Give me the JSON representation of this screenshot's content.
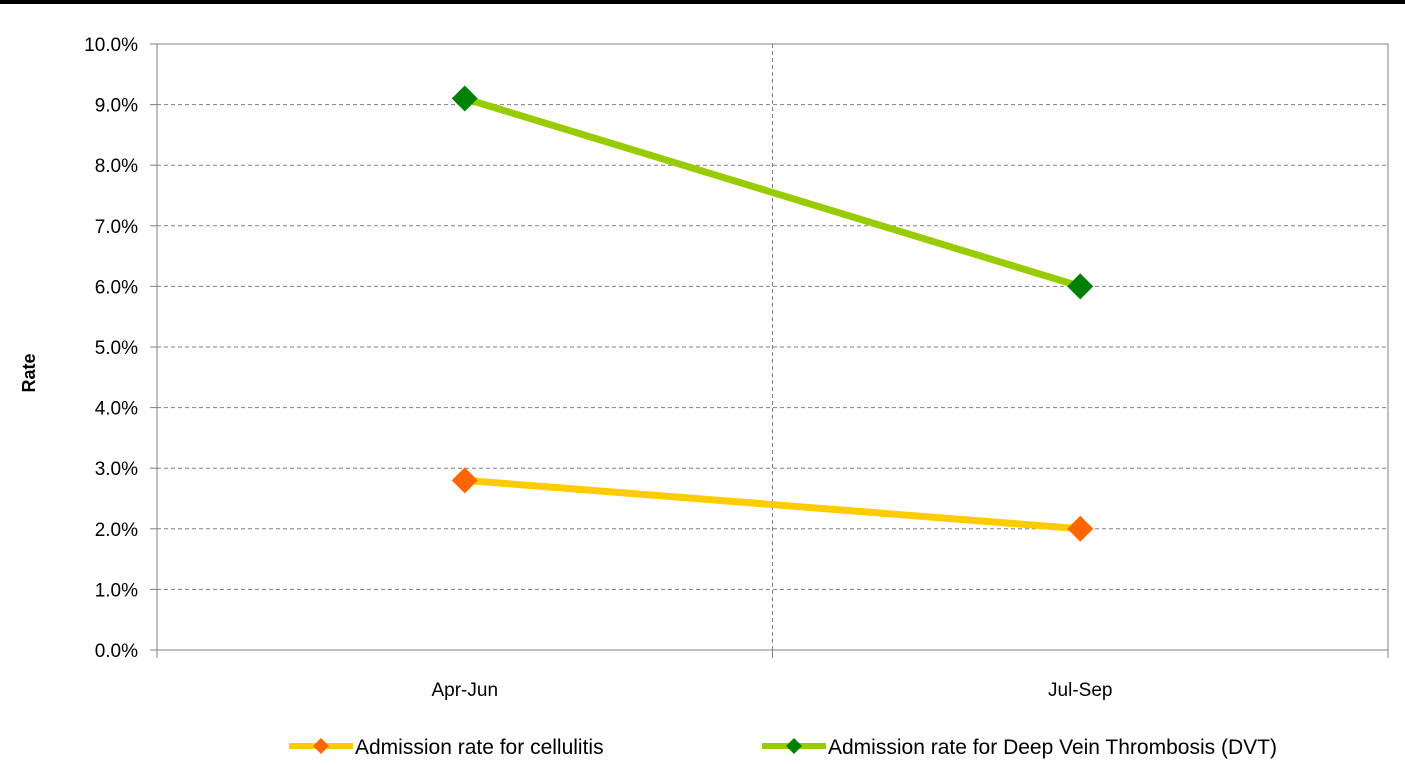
{
  "chart_data": {
    "type": "line",
    "title": "",
    "xlabel": "",
    "ylabel": "Rate",
    "categories": [
      "Apr-Jun",
      "Jul-Sep"
    ],
    "ylim": [
      0,
      10
    ],
    "ytick_values": [
      0,
      1,
      2,
      3,
      4,
      5,
      6,
      7,
      8,
      9,
      10
    ],
    "ytick_labels": [
      "0.0%",
      "1.0%",
      "2.0%",
      "3.0%",
      "4.0%",
      "5.0%",
      "6.0%",
      "7.0%",
      "8.0%",
      "9.0%",
      "10.0%"
    ],
    "y_unit": "%",
    "grid": true,
    "legend_position": "bottom",
    "series": [
      {
        "name": "Admission rate for cellulitis",
        "values": [
          2.8,
          2.0
        ],
        "line_color": "#ffcc00",
        "marker_color": "#ff6600"
      },
      {
        "name": "Admission rate for Deep Vein Thrombosis (DVT)",
        "values": [
          9.1,
          6.0
        ],
        "line_color": "#99cc00",
        "marker_color": "#008000"
      }
    ]
  }
}
